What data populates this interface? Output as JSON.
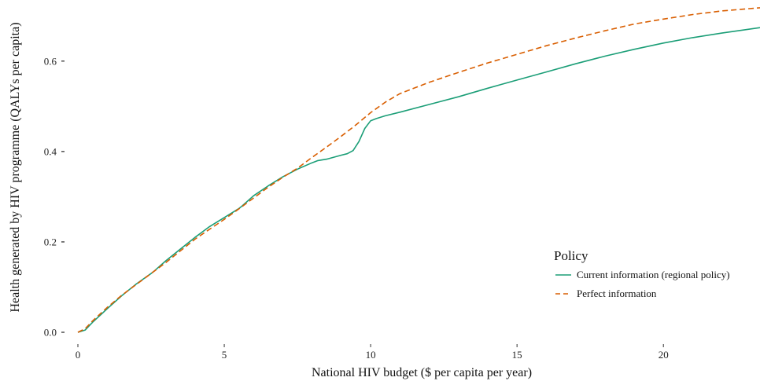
{
  "chart_data": {
    "type": "line",
    "title": "",
    "xlabel": "National HIV budget ($ per capita per year)",
    "ylabel": "Health generated by HIV programme (QALYs per capita)",
    "xlim": [
      0,
      23.3
    ],
    "ylim": [
      0,
      0.69
    ],
    "x_ticks": [
      0,
      5,
      10,
      15,
      20
    ],
    "x_tick_labels": [
      "0",
      "5",
      "10",
      "15",
      "20"
    ],
    "y_ticks": [
      0,
      0.2,
      0.4,
      0.6
    ],
    "y_tick_labels": [
      "0.0",
      "0.2",
      "0.4",
      "0.6"
    ],
    "grid": false,
    "legend": {
      "title": "Policy",
      "placement": "bottom-right"
    },
    "series": [
      {
        "name": "Current information (regional policy)",
        "color": "#1b9e77",
        "style": "solid",
        "x": [
          0,
          0.25,
          0.5,
          1,
          1.5,
          2,
          2.5,
          2.6,
          3,
          3.5,
          4,
          4.5,
          5,
          5.5,
          5.6,
          6,
          6.5,
          7,
          7.5,
          8,
          8.2,
          8.5,
          9,
          9.2,
          9.4,
          9.6,
          9.8,
          10,
          10.2,
          10.5,
          11,
          12,
          13,
          14,
          15,
          16,
          17,
          18,
          19,
          20,
          21,
          22,
          23.3
        ],
        "y": [
          0,
          0.005,
          0.022,
          0.052,
          0.081,
          0.107,
          0.13,
          0.135,
          0.158,
          0.184,
          0.21,
          0.234,
          0.254,
          0.274,
          0.279,
          0.302,
          0.324,
          0.344,
          0.361,
          0.375,
          0.38,
          0.383,
          0.392,
          0.395,
          0.402,
          0.422,
          0.451,
          0.468,
          0.473,
          0.479,
          0.487,
          0.504,
          0.521,
          0.54,
          0.558,
          0.576,
          0.594,
          0.611,
          0.626,
          0.64,
          0.652,
          0.662,
          0.674
        ]
      },
      {
        "name": "Perfect information",
        "color": "#d95f02",
        "style": "dashed",
        "x": [
          0,
          0.25,
          0.5,
          1,
          1.5,
          2,
          2.5,
          3,
          3.5,
          4,
          4.5,
          5,
          5.5,
          6,
          6.5,
          7,
          7.5,
          8,
          8.5,
          9,
          9.5,
          10,
          10.5,
          11,
          12,
          13,
          14,
          15,
          16,
          17,
          18,
          19,
          20,
          21,
          22,
          23.3
        ],
        "y": [
          0,
          0.008,
          0.025,
          0.055,
          0.082,
          0.106,
          0.13,
          0.154,
          0.18,
          0.206,
          0.228,
          0.25,
          0.273,
          0.297,
          0.321,
          0.343,
          0.363,
          0.387,
          0.41,
          0.434,
          0.459,
          0.486,
          0.509,
          0.528,
          0.553,
          0.575,
          0.596,
          0.615,
          0.634,
          0.651,
          0.667,
          0.682,
          0.693,
          0.703,
          0.711,
          0.718
        ]
      }
    ]
  }
}
